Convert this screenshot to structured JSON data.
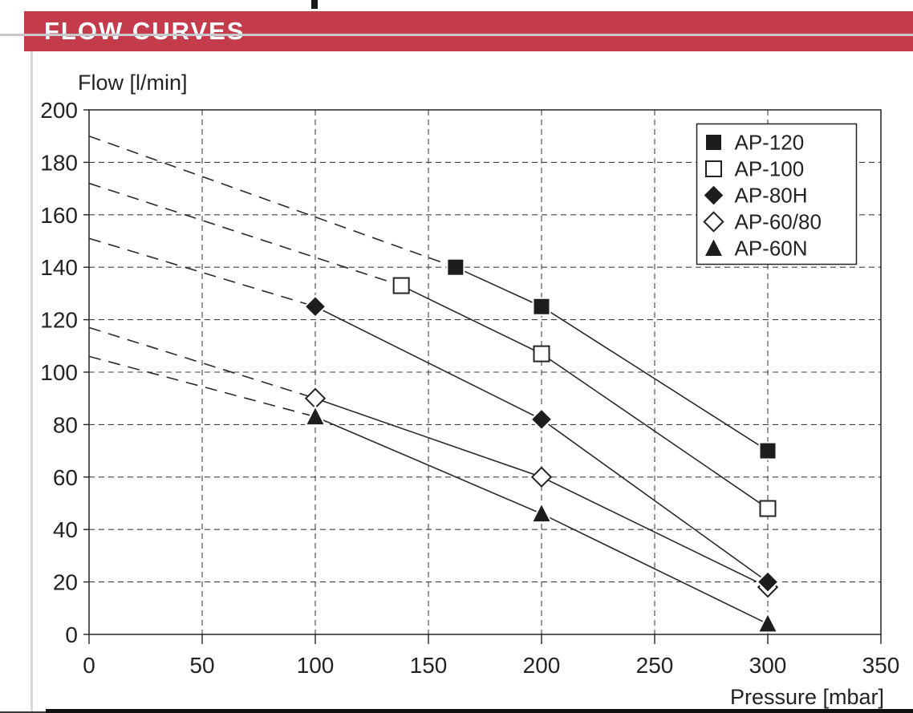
{
  "header": {
    "title": "FLOW CURVES",
    "banner_color": "#c43b4c"
  },
  "colors": {
    "accent": "#c43b4c",
    "ink": "#262223",
    "grid": "#434041",
    "rule_gray": "#c7c7cc"
  },
  "chart_data": {
    "type": "line",
    "title": "FLOW CURVES",
    "xlabel": "Pressure [mbar]",
    "ylabel": "Flow [l/min]",
    "xlim": [
      0,
      350
    ],
    "ylim": [
      0,
      200
    ],
    "xticks": [
      0,
      50,
      100,
      150,
      200,
      250,
      300,
      350
    ],
    "yticks": [
      0,
      20,
      40,
      60,
      80,
      100,
      120,
      140,
      160,
      180,
      200
    ],
    "grid": "dashed",
    "legend_position": "top-right",
    "legend_entries": [
      "AP-120",
      "AP-100",
      "AP-80H",
      "AP-60/80",
      "AP-60N"
    ],
    "series": [
      {
        "name": "AP-120",
        "marker": "square-filled",
        "dashed_extension_from": [
          0,
          190
        ],
        "points": [
          [
            162,
            140
          ],
          [
            200,
            125
          ],
          [
            300,
            70
          ]
        ]
      },
      {
        "name": "AP-100",
        "marker": "square-open",
        "dashed_extension_from": [
          0,
          172
        ],
        "points": [
          [
            138,
            133
          ],
          [
            200,
            107
          ],
          [
            300,
            48
          ]
        ]
      },
      {
        "name": "AP-80H",
        "marker": "diamond-filled",
        "dashed_extension_from": [
          0,
          151
        ],
        "points": [
          [
            100,
            125
          ],
          [
            200,
            82
          ],
          [
            300,
            20
          ]
        ]
      },
      {
        "name": "AP-60/80",
        "marker": "diamond-open",
        "dashed_extension_from": [
          0,
          117
        ],
        "points": [
          [
            100,
            90
          ],
          [
            200,
            60
          ],
          [
            300,
            18
          ]
        ]
      },
      {
        "name": "AP-60N",
        "marker": "triangle-filled",
        "dashed_extension_from": [
          0,
          106
        ],
        "points": [
          [
            100,
            83
          ],
          [
            200,
            46
          ],
          [
            300,
            4
          ]
        ]
      }
    ]
  }
}
